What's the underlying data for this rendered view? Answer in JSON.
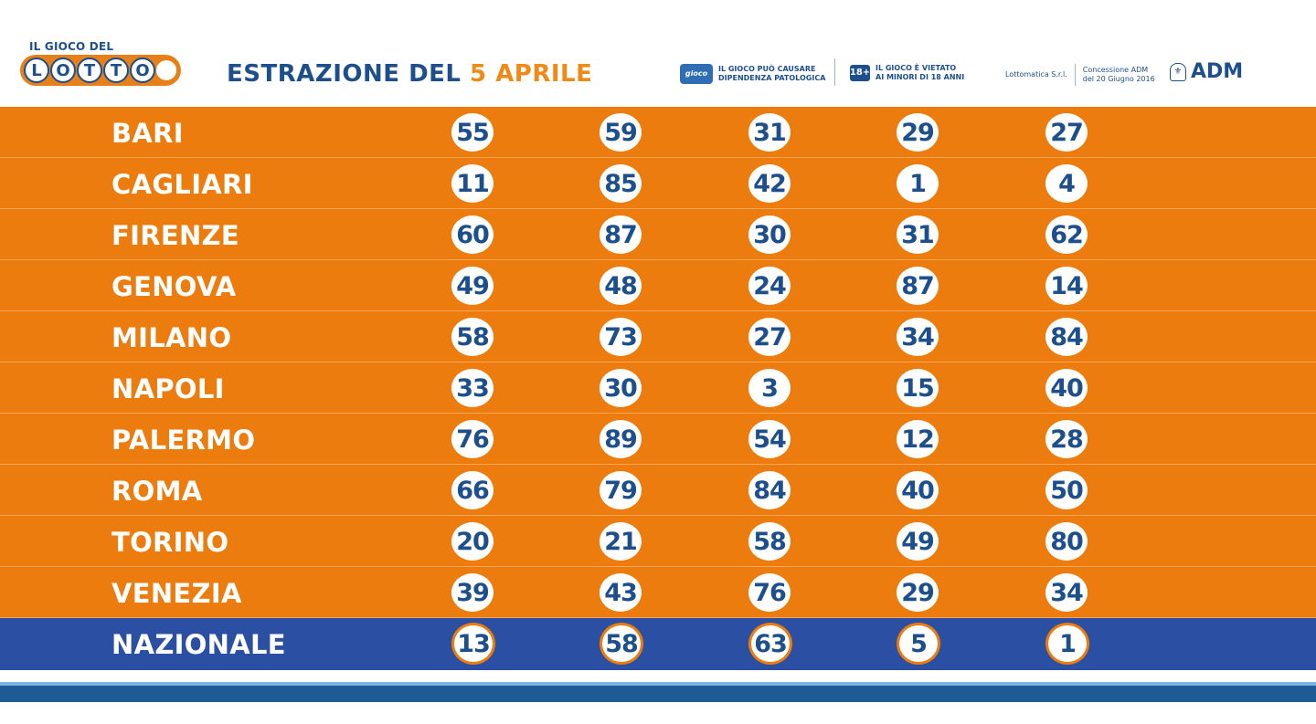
{
  "logo": {
    "top_text": "IL GIOCO DEL",
    "letters": [
      "L",
      "O",
      "T",
      "T",
      "O"
    ]
  },
  "header": {
    "title_prefix": "ESTRAZIONE DEL",
    "title_date": "5 APRILE",
    "warning_gambling_1": "IL GIOCO PUÒ CAUSARE",
    "warning_gambling_2": "DIPENDENZA PATOLOGICA",
    "warning_age_badge": "18+",
    "warning_age_1": "IL GIOCO È VIETATO",
    "warning_age_2": "AI MINORI DI 18 ANNI",
    "operator": "Lottomatica S.r.l.",
    "concession_1": "Concessione ADM",
    "concession_2": "del 20 Giugno 2016",
    "adm": "ADM"
  },
  "draws": [
    {
      "city": "BARI",
      "numbers": [
        "55",
        "59",
        "31",
        "29",
        "27"
      ]
    },
    {
      "city": "CAGLIARI",
      "numbers": [
        "11",
        "85",
        "42",
        "1",
        "4"
      ]
    },
    {
      "city": "FIRENZE",
      "numbers": [
        "60",
        "87",
        "30",
        "31",
        "62"
      ]
    },
    {
      "city": "GENOVA",
      "numbers": [
        "49",
        "48",
        "24",
        "87",
        "14"
      ]
    },
    {
      "city": "MILANO",
      "numbers": [
        "58",
        "73",
        "27",
        "34",
        "84"
      ]
    },
    {
      "city": "NAPOLI",
      "numbers": [
        "33",
        "30",
        "3",
        "15",
        "40"
      ]
    },
    {
      "city": "PALERMO",
      "numbers": [
        "76",
        "89",
        "54",
        "12",
        "28"
      ]
    },
    {
      "city": "ROMA",
      "numbers": [
        "66",
        "79",
        "84",
        "40",
        "50"
      ]
    },
    {
      "city": "TORINO",
      "numbers": [
        "20",
        "21",
        "58",
        "49",
        "80"
      ]
    },
    {
      "city": "VENEZIA",
      "numbers": [
        "39",
        "43",
        "76",
        "29",
        "34"
      ]
    },
    {
      "city": "NAZIONALE",
      "numbers": [
        "13",
        "58",
        "63",
        "5",
        "1"
      ]
    }
  ],
  "colors": {
    "orange": "#ec7c0e",
    "blue": "#2a4fa3",
    "navy": "#1d4f8c"
  }
}
